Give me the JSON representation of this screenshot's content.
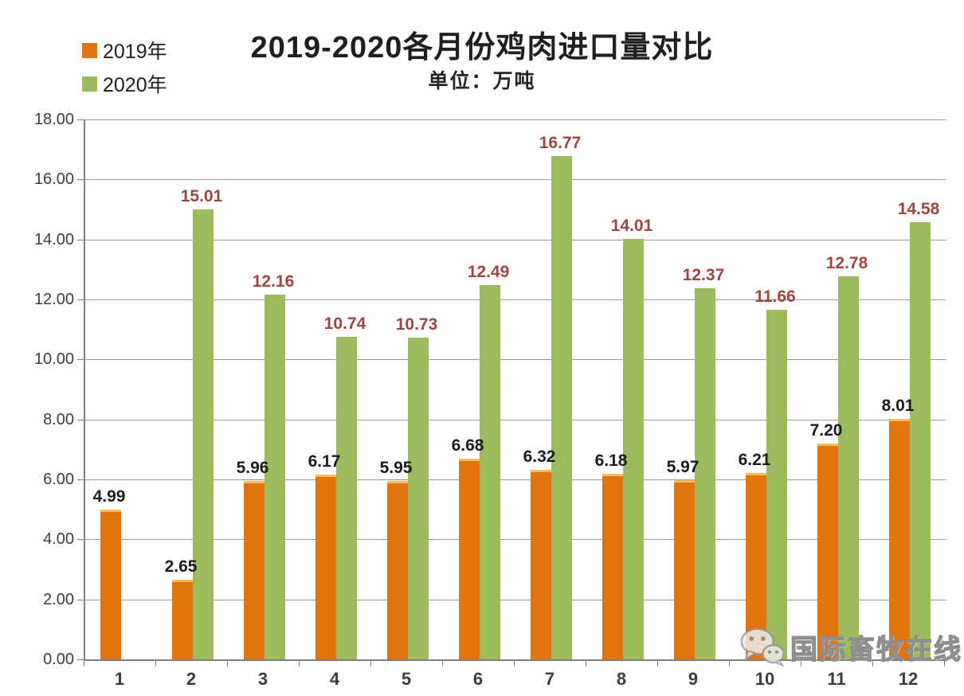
{
  "header": {
    "title": "2019-2020各月份鸡肉进口量对比",
    "subtitle": "单位：万吨"
  },
  "legend": {
    "items": [
      {
        "label": "2019年",
        "color": "#E2740D"
      },
      {
        "label": "2020年",
        "color": "#9DBA5D"
      }
    ]
  },
  "watermark": {
    "text": "国际畜牧在线",
    "icon": "wechat-icon"
  },
  "chart_data": {
    "type": "bar",
    "title": "2019-2020各月份鸡肉进口量对比",
    "subtitle": "单位：万吨",
    "xlabel": "",
    "ylabel": "",
    "unit": "万吨",
    "categories": [
      "1",
      "2",
      "3",
      "4",
      "5",
      "6",
      "7",
      "8",
      "9",
      "10",
      "11",
      "12"
    ],
    "series": [
      {
        "name": "2019年",
        "color": "#E2740D",
        "label_color": "#1c1c1c",
        "values": [
          4.99,
          2.65,
          5.96,
          6.17,
          5.95,
          6.68,
          6.32,
          6.18,
          5.97,
          6.21,
          7.2,
          8.01
        ]
      },
      {
        "name": "2020年",
        "color": "#9DBA5D",
        "label_color": "#9A4741",
        "values": [
          null,
          15.01,
          12.16,
          10.74,
          10.73,
          12.49,
          16.77,
          14.01,
          12.37,
          11.66,
          12.78,
          14.58
        ]
      }
    ],
    "ylim": [
      0,
      18
    ],
    "ytick_step": 2,
    "value_label_decimals": 2,
    "grid": true,
    "legend_position": "top-left",
    "gridline_color": "#9b9b9b",
    "axis_color": "#808080"
  }
}
